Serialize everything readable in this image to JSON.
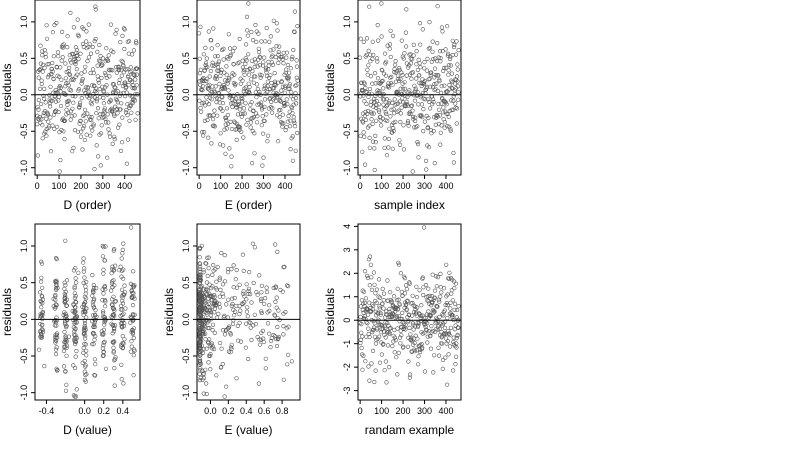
{
  "figure": {
    "background": "#ffffff",
    "point_color": "#555555"
  },
  "chart_data": [
    {
      "id": "p1",
      "type": "scatter",
      "title": "",
      "xlabel": "D (order)",
      "ylabel": "residuals",
      "xlim": [
        -10,
        470
      ],
      "ylim": [
        -1.1,
        1.3
      ],
      "xticks": [
        0,
        100,
        200,
        300,
        400
      ],
      "xtick_labels": [
        "0",
        "100",
        "200",
        "300",
        "400"
      ],
      "yticks": [
        -1.0,
        -0.5,
        0.0,
        0.5,
        1.0
      ],
      "ytick_labels": [
        "-1.0",
        "-0.5",
        "0.0",
        "0.5",
        "1.0"
      ],
      "hline": 0,
      "n_points": 460,
      "gen": "index_normal",
      "seed": 11,
      "sd": 0.4
    },
    {
      "id": "p2",
      "type": "scatter",
      "title": "",
      "xlabel": "E (order)",
      "ylabel": "residuals",
      "xlim": [
        -10,
        470
      ],
      "ylim": [
        -1.1,
        1.3
      ],
      "xticks": [
        0,
        100,
        200,
        300,
        400
      ],
      "xtick_labels": [
        "0",
        "100",
        "200",
        "300",
        "400"
      ],
      "yticks": [
        -1.0,
        -0.5,
        0.0,
        0.5,
        1.0
      ],
      "ytick_labels": [
        "-1.0",
        "-0.5",
        "0.0",
        "0.5",
        "1.0"
      ],
      "hline": 0,
      "n_points": 460,
      "gen": "index_normal",
      "seed": 23,
      "sd": 0.4
    },
    {
      "id": "p3",
      "type": "scatter",
      "title": "",
      "xlabel": "sample index",
      "ylabel": "residuals",
      "xlim": [
        -10,
        470
      ],
      "ylim": [
        -1.1,
        1.3
      ],
      "xticks": [
        0,
        100,
        200,
        300,
        400
      ],
      "xtick_labels": [
        "0",
        "100",
        "200",
        "300",
        "400"
      ],
      "yticks": [
        -1.0,
        -0.5,
        0.0,
        0.5,
        1.0
      ],
      "ytick_labels": [
        "-1.0",
        "-0.5",
        "0.0",
        "0.5",
        "1.0"
      ],
      "hline": 0,
      "n_points": 460,
      "gen": "index_normal",
      "seed": 37,
      "sd": 0.4
    },
    {
      "id": "p4",
      "type": "scatter",
      "title": "",
      "xlabel": "D (value)",
      "ylabel": "residuals",
      "xlim": [
        -0.52,
        0.58
      ],
      "ylim": [
        -1.1,
        1.3
      ],
      "xticks": [
        -0.4,
        0.0,
        0.2,
        0.4
      ],
      "xtick_labels": [
        "-0.4",
        "0.0",
        "0.2",
        "0.4"
      ],
      "yticks": [
        -1.0,
        -0.5,
        0.0,
        0.5,
        1.0
      ],
      "ytick_labels": [
        "-1.0",
        "-0.5",
        "0.0",
        "0.5",
        "1.0"
      ],
      "hline": 0,
      "n_points": 460,
      "gen": "clustered_x",
      "seed": 41,
      "sd": 0.4,
      "x_clusters": [
        -0.45,
        -0.3,
        -0.2,
        -0.1,
        0.0,
        0.1,
        0.2,
        0.3,
        0.4,
        0.5
      ]
    },
    {
      "id": "p5",
      "type": "scatter",
      "title": "",
      "xlabel": "E (value)",
      "ylabel": "residuals",
      "xlim": [
        -0.15,
        1.0
      ],
      "ylim": [
        -1.1,
        1.3
      ],
      "xticks": [
        0.0,
        0.2,
        0.4,
        0.6,
        0.8
      ],
      "xtick_labels": [
        "0.0",
        "0.2",
        "0.4",
        "0.6",
        "0.8"
      ],
      "yticks": [
        -1.0,
        -0.5,
        0.0,
        0.5,
        1.0
      ],
      "ytick_labels": [
        "-1.0",
        "-0.5",
        "0.0",
        "0.5",
        "1.0"
      ],
      "hline": 0,
      "n_points": 460,
      "gen": "skewed_x",
      "seed": 53,
      "sd": 0.4
    },
    {
      "id": "p6",
      "type": "scatter",
      "title": "",
      "xlabel": "randam example",
      "ylabel": "residuals",
      "xlim": [
        -10,
        470
      ],
      "ylim": [
        -3.4,
        4.1
      ],
      "xticks": [
        0,
        100,
        200,
        300,
        400
      ],
      "xtick_labels": [
        "0",
        "100",
        "200",
        "300",
        "400"
      ],
      "yticks": [
        -3,
        -2,
        -1,
        0,
        1,
        2,
        3,
        4
      ],
      "ytick_labels": [
        "-3",
        "-2",
        "-1",
        "0",
        "1",
        "2",
        "3",
        "4"
      ],
      "hline": 0,
      "n_points": 460,
      "gen": "index_normal",
      "seed": 67,
      "sd": 1.0
    }
  ]
}
